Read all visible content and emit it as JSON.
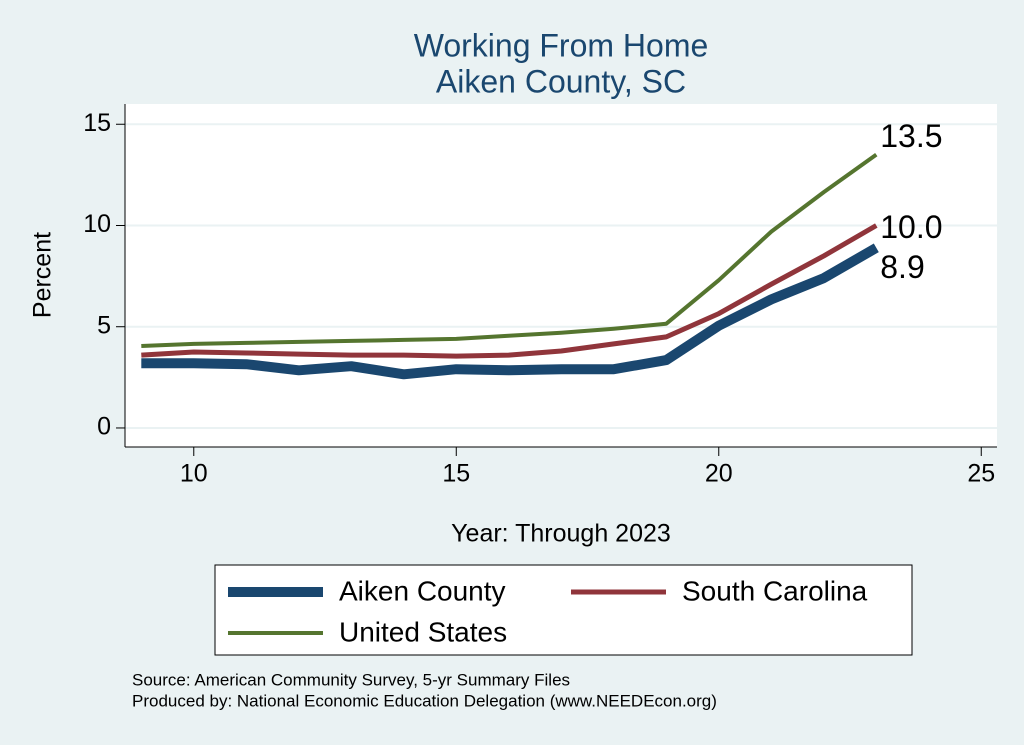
{
  "chart_data": {
    "type": "line",
    "title": "Working From Home",
    "subtitle": "Aiken County, SC",
    "x_label": "Year: Through 2023",
    "y_label": "Percent",
    "x": [
      9,
      10,
      11,
      12,
      13,
      14,
      15,
      16,
      17,
      18,
      19,
      20,
      21,
      22,
      23
    ],
    "series": [
      {
        "name": "Aiken County",
        "color": "#1a476f",
        "values": [
          3.2,
          3.2,
          3.15,
          2.85,
          3.05,
          2.65,
          2.9,
          2.85,
          2.9,
          2.9,
          3.35,
          5.05,
          6.35,
          7.4,
          8.9
        ],
        "value_labels": [
          null,
          null,
          null,
          null,
          null,
          null,
          null,
          null,
          null,
          null,
          null,
          null,
          null,
          null,
          "8.9"
        ]
      },
      {
        "name": "South Carolina",
        "color": "#90353b",
        "values": [
          3.6,
          3.75,
          3.7,
          3.65,
          3.6,
          3.6,
          3.55,
          3.6,
          3.8,
          4.15,
          4.5,
          5.65,
          7.1,
          8.5,
          10.0
        ],
        "value_labels": [
          null,
          null,
          null,
          null,
          null,
          null,
          null,
          null,
          null,
          null,
          null,
          null,
          null,
          null,
          "10.0"
        ]
      },
      {
        "name": "United States",
        "color": "#55752f",
        "values": [
          4.05,
          4.15,
          4.2,
          4.25,
          4.3,
          4.35,
          4.4,
          4.55,
          4.7,
          4.9,
          5.15,
          7.3,
          9.7,
          11.65,
          13.5
        ],
        "value_labels": [
          null,
          null,
          null,
          null,
          null,
          null,
          null,
          null,
          null,
          null,
          null,
          null,
          null,
          null,
          "13.5"
        ]
      }
    ],
    "xlim": [
      8.69,
      25.3
    ],
    "xticks": [
      10,
      15,
      20,
      25
    ],
    "ylim": [
      -0.94,
      16
    ],
    "yticks": [
      0,
      5,
      10,
      15
    ],
    "grid": true,
    "notes": [
      "Source: American Community Survey, 5-yr Summary Files",
      "Produced by: National Economic Education Delegation (www.NEEDEcon.org)"
    ]
  }
}
